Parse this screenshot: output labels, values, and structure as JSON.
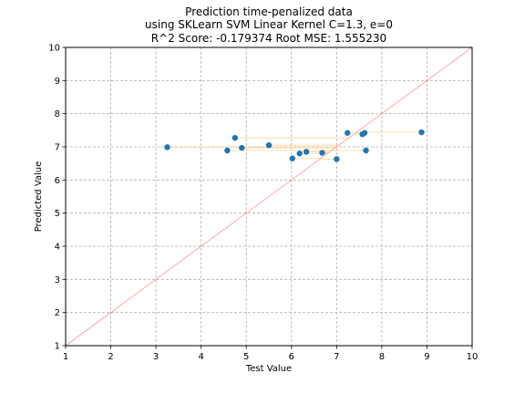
{
  "figure": {
    "title_lines": [
      "Prediction time-penalized data",
      "using SKLearn SVM Linear Kernel C=1.3, e=0",
      "R^2 Score: -0.179374 Root MSE: 1.555230"
    ]
  },
  "chart_data": {
    "type": "scatter",
    "title": "Prediction time-penalized data\nusing SKLearn SVM Linear Kernel C=1.3, e=0\nR^2 Score: -0.179374 Root MSE: 1.555230",
    "xlabel": "Test Value",
    "ylabel": "Predicted Value",
    "xlim": [
      1,
      10
    ],
    "ylim": [
      1,
      10
    ],
    "xticks": [
      1,
      2,
      3,
      4,
      5,
      6,
      7,
      8,
      9,
      10
    ],
    "yticks": [
      1,
      2,
      3,
      4,
      5,
      6,
      7,
      8,
      9,
      10
    ],
    "grid": true,
    "grid_style": "dashed",
    "colors": {
      "points": "#1f77b4",
      "identity_line": "#ff6666",
      "residual_lines": "#ffcc80",
      "grid": "#b0b0b0"
    },
    "reference_line": {
      "from": [
        1,
        1
      ],
      "to": [
        10,
        10
      ]
    },
    "series": [
      {
        "x": [
          3.25,
          4.58,
          4.75,
          4.9,
          5.5,
          6.02,
          6.18,
          6.33,
          6.68,
          7.0,
          7.24,
          7.57,
          7.62,
          7.65,
          8.88
        ],
        "y": [
          6.99,
          6.89,
          7.27,
          6.97,
          7.05,
          6.65,
          6.8,
          6.85,
          6.82,
          6.63,
          7.42,
          7.38,
          7.42,
          6.89,
          7.44
        ]
      }
    ]
  }
}
